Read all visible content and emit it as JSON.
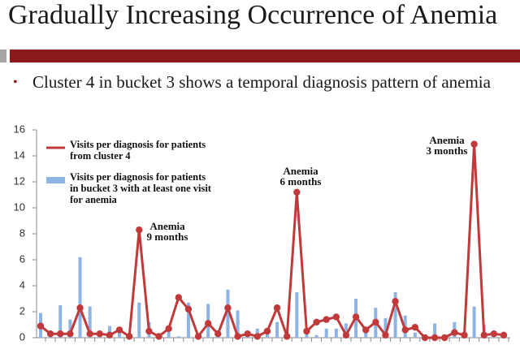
{
  "title": "Gradually Increasing Occurrence of Anemia",
  "bullet": "Cluster 4 in bucket 3 shows a temporal diagnosis pattern of anemia",
  "chart_data": {
    "type": "combo",
    "categories": [
      null,
      null,
      null,
      null,
      null,
      null,
      null,
      null,
      null,
      null,
      null,
      null,
      null,
      null,
      null,
      null,
      null,
      null,
      null,
      null,
      null,
      null,
      null,
      null,
      null,
      null,
      null,
      null,
      null,
      null,
      null,
      null,
      null,
      null,
      null,
      null,
      null,
      null,
      null,
      null,
      null,
      null,
      null,
      null,
      null,
      null,
      null,
      null
    ],
    "series": [
      {
        "name": "Visits per diagnosis for patients in bucket 3 with at least one visit for anemia",
        "type": "bar",
        "color": "#8db4e2",
        "values": [
          1.9,
          0.2,
          2.5,
          1.4,
          6.2,
          2.4,
          0.3,
          0.9,
          0.7,
          0.3,
          2.7,
          1.2,
          0.1,
          0.6,
          0.1,
          2.7,
          0.2,
          2.6,
          0.3,
          3.7,
          2.1,
          0.2,
          0.7,
          0.5,
          1.2,
          0.2,
          3.5,
          0.3,
          0.2,
          0.7,
          0.7,
          1.1,
          3.0,
          0.7,
          2.3,
          1.5,
          3.5,
          1.7,
          0.4,
          0.2,
          1.1,
          0.2,
          1.2,
          0.3,
          2.4,
          1.0,
          0.2,
          0.2
        ]
      },
      {
        "name": "Visits per diagnosis for patients from cluster 4",
        "type": "line",
        "color": "#c0393b",
        "values": [
          0.9,
          0.3,
          0.3,
          0.3,
          2.3,
          0.3,
          0.3,
          0.2,
          0.6,
          0.1,
          8.3,
          0.5,
          0.1,
          0.7,
          3.1,
          2.2,
          0.1,
          1.1,
          0.3,
          2.3,
          0.1,
          0.3,
          0.1,
          0.5,
          2.3,
          0.1,
          11.2,
          0.5,
          1.2,
          1.4,
          1.6,
          0.2,
          1.6,
          0.6,
          1.2,
          0.2,
          2.8,
          0.6,
          0.8,
          0,
          0,
          0,
          0.4,
          0.2,
          14.9,
          0.2,
          0.3,
          0.2
        ]
      }
    ],
    "ylim": [
      0,
      16
    ],
    "yticks": [
      0,
      2,
      4,
      6,
      8,
      10,
      12,
      14,
      16
    ],
    "grid": false,
    "annotations": [
      {
        "text": "Anemia\n9 months"
      },
      {
        "text": "Anemia\n6 months"
      },
      {
        "text": "Anemia\n3 months"
      }
    ]
  }
}
